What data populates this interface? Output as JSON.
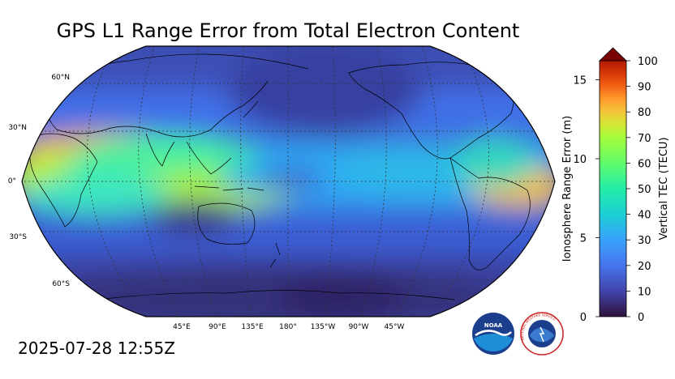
{
  "title": "GPS L1 Range Error from Total Electron Content",
  "timestamp": "2025-07-28 12:55Z",
  "map": {
    "projection": "Robinson",
    "central_longitude": 180,
    "lat_labels": [
      "60°N",
      "30°N",
      "0°",
      "30°S",
      "60°S"
    ],
    "lon_labels": [
      "45°E",
      "90°E",
      "135°E",
      "180°",
      "135°W",
      "90°W",
      "45°W"
    ],
    "gridlines": "dotted"
  },
  "colorbar": {
    "left_label": "Ionosphere Range Error (m)",
    "right_label": "Vertical TEC (TECU)",
    "left_ticks": [
      "0",
      "5",
      "10",
      "15"
    ],
    "right_ticks": [
      "0",
      "10",
      "20",
      "30",
      "40",
      "50",
      "60",
      "70",
      "80",
      "90",
      "100"
    ],
    "range_tecu": [
      0,
      100
    ],
    "range_m": [
      0,
      16.2
    ],
    "extend": "max",
    "colormap": "turbo"
  },
  "logos": {
    "noaa_text": "NOAA",
    "nws_text": "NATIONAL WEATHER SERVICE"
  },
  "colors": {
    "low": "#30123b",
    "mid_low": "#4686fb",
    "mid": "#1ae4b6",
    "mid_high": "#a2fc3c",
    "high": "#fb8022",
    "max": "#7a0403"
  }
}
